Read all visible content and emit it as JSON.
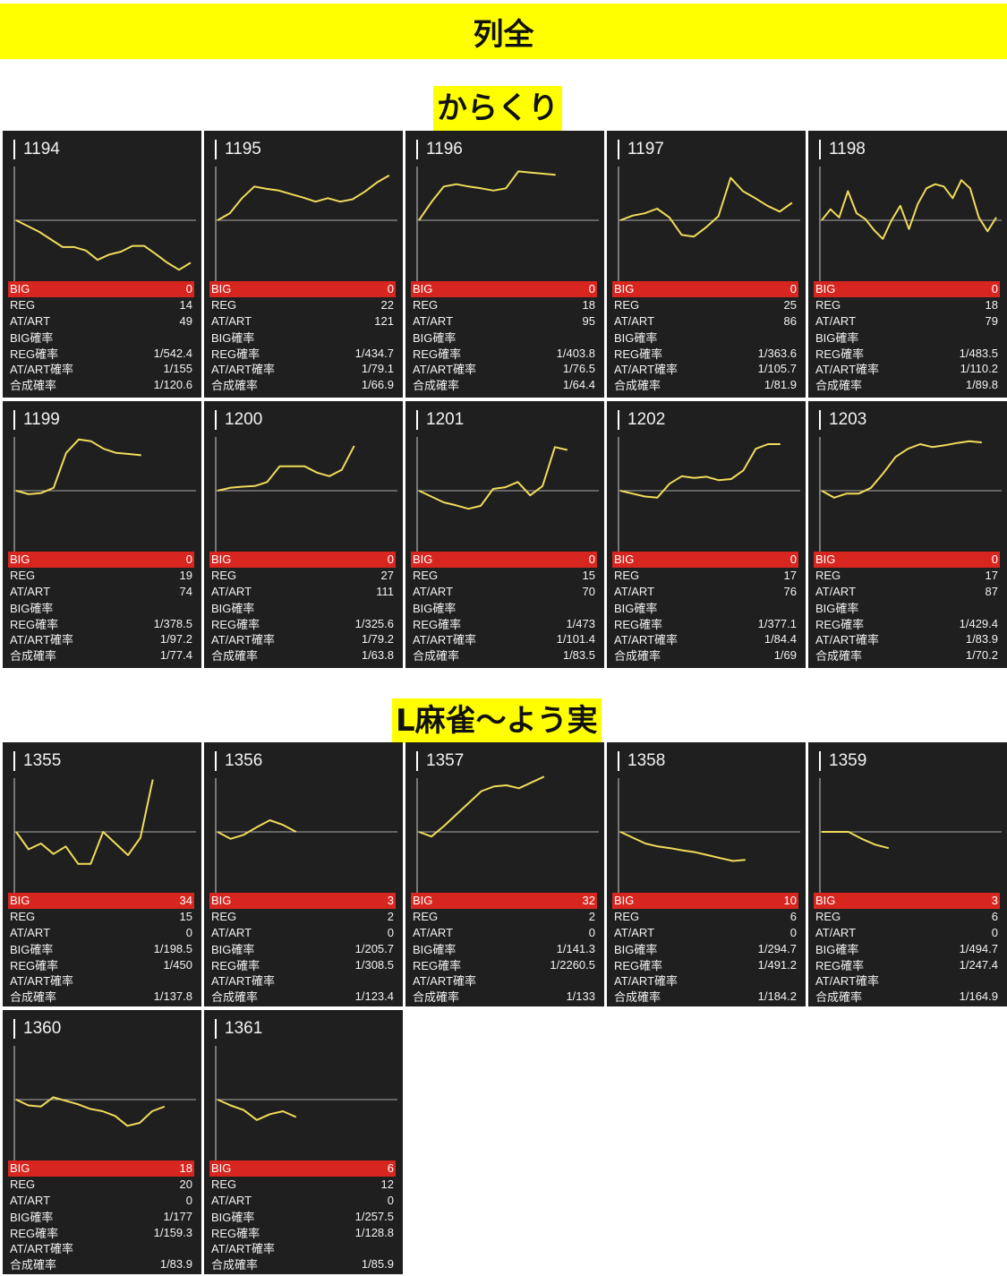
{
  "page_title": "列全",
  "colors": {
    "banner": "#ffff00",
    "card_bg": "#1f1f1f",
    "line": "#f0dc5a",
    "big_row": "#d6261f",
    "baseline": "#aaaaaa"
  },
  "stat_labels": [
    "BIG",
    "REG",
    "AT/ART",
    "BIG確率",
    "REG確率",
    "AT/ART確率",
    "合成確率"
  ],
  "sections": [
    {
      "title": "からくり",
      "machines": [
        {
          "number": "1194",
          "stats": [
            "0",
            "14",
            "49",
            "",
            "1/542.4",
            "1/155",
            "1/120.6"
          ]
        },
        {
          "number": "1195",
          "stats": [
            "0",
            "22",
            "121",
            "",
            "1/434.7",
            "1/79.1",
            "1/66.9"
          ]
        },
        {
          "number": "1196",
          "stats": [
            "0",
            "18",
            "95",
            "",
            "1/403.8",
            "1/76.5",
            "1/64.4"
          ]
        },
        {
          "number": "1197",
          "stats": [
            "0",
            "25",
            "86",
            "",
            "1/363.6",
            "1/105.7",
            "1/81.9"
          ]
        },
        {
          "number": "1198",
          "stats": [
            "0",
            "18",
            "79",
            "",
            "1/483.5",
            "1/110.2",
            "1/89.8"
          ]
        },
        {
          "number": "1199",
          "stats": [
            "0",
            "19",
            "74",
            "",
            "1/378.5",
            "1/97.2",
            "1/77.4"
          ]
        },
        {
          "number": "1200",
          "stats": [
            "0",
            "27",
            "111",
            "",
            "1/325.6",
            "1/79.2",
            "1/63.8"
          ]
        },
        {
          "number": "1201",
          "stats": [
            "0",
            "15",
            "70",
            "",
            "1/473",
            "1/101.4",
            "1/83.5"
          ]
        },
        {
          "number": "1202",
          "stats": [
            "0",
            "17",
            "76",
            "",
            "1/377.1",
            "1/84.4",
            "1/69"
          ]
        },
        {
          "number": "1203",
          "stats": [
            "0",
            "17",
            "87",
            "",
            "1/429.4",
            "1/83.9",
            "1/70.2"
          ]
        }
      ]
    },
    {
      "title": "L麻雀～よう実",
      "machines": [
        {
          "number": "1355",
          "stats": [
            "34",
            "15",
            "0",
            "1/198.5",
            "1/450",
            "",
            "1/137.8"
          ]
        },
        {
          "number": "1356",
          "stats": [
            "3",
            "2",
            "0",
            "1/205.7",
            "1/308.5",
            "",
            "1/123.4"
          ]
        },
        {
          "number": "1357",
          "stats": [
            "32",
            "2",
            "0",
            "1/141.3",
            "1/2260.5",
            "",
            "1/133"
          ]
        },
        {
          "number": "1358",
          "stats": [
            "10",
            "6",
            "0",
            "1/294.7",
            "1/491.2",
            "",
            "1/184.2"
          ]
        },
        {
          "number": "1359",
          "stats": [
            "3",
            "6",
            "0",
            "1/494.7",
            "1/247.4",
            "",
            "1/164.9"
          ]
        },
        {
          "number": "1360",
          "stats": [
            "18",
            "20",
            "0",
            "1/177",
            "1/159.3",
            "",
            "1/83.9"
          ]
        },
        {
          "number": "1361",
          "stats": [
            "6",
            "12",
            "0",
            "1/257.5",
            "1/128.8",
            "",
            "1/85.9"
          ]
        }
      ]
    }
  ],
  "chart_data": [
    {
      "type": "line",
      "machine": "1194",
      "y_range": [
        -1,
        1
      ],
      "values": [
        0,
        -0.1,
        -0.2,
        -0.33,
        -0.46,
        -0.46,
        -0.52,
        -0.68,
        -0.59,
        -0.54,
        -0.44,
        -0.44,
        -0.58,
        -0.73,
        -0.85,
        -0.73
      ]
    },
    {
      "type": "line",
      "machine": "1195",
      "y_range": [
        -1,
        1
      ],
      "values": [
        0,
        0.12,
        0.38,
        0.58,
        0.54,
        0.51,
        0.45,
        0.39,
        0.32,
        0.38,
        0.32,
        0.36,
        0.49,
        0.65,
        0.77
      ]
    },
    {
      "type": "line",
      "machine": "1196",
      "y_range": [
        -1,
        1
      ],
      "values": [
        0,
        0.31,
        0.58,
        0.62,
        0.58,
        0.55,
        0.51,
        0.55,
        0.84,
        0.82,
        0.8,
        0.78
      ]
    },
    {
      "type": "line",
      "machine": "1197",
      "y_range": [
        -1,
        1
      ],
      "values": [
        0,
        0.08,
        0.12,
        0.2,
        0.05,
        -0.25,
        -0.28,
        -0.12,
        0.07,
        0.73,
        0.5,
        0.38,
        0.25,
        0.15,
        0.3
      ]
    },
    {
      "type": "line",
      "machine": "1198",
      "y_range": [
        -1,
        1
      ],
      "values": [
        0,
        0.19,
        0.05,
        0.5,
        0.12,
        0.02,
        -0.17,
        -0.32,
        0,
        0.25,
        -0.15,
        0.28,
        0.55,
        0.62,
        0.58,
        0.38,
        0.69,
        0.55,
        0.05,
        -0.19,
        0.05
      ]
    },
    {
      "type": "line",
      "machine": "1199",
      "y_range": [
        -1,
        1
      ],
      "values": [
        0,
        -0.06,
        -0.04,
        0.05,
        0.65,
        0.88,
        0.85,
        0.72,
        0.65,
        0.63,
        0.61
      ]
    },
    {
      "type": "line",
      "machine": "1200",
      "y_range": [
        -1,
        1
      ],
      "values": [
        0,
        0.05,
        0.07,
        0.08,
        0.15,
        0.42,
        0.42,
        0.42,
        0.31,
        0.25,
        0.36,
        0.77
      ]
    },
    {
      "type": "line",
      "machine": "1201",
      "y_range": [
        -1,
        1
      ],
      "values": [
        0,
        -0.1,
        -0.2,
        -0.25,
        -0.31,
        -0.26,
        0.03,
        0.06,
        0.15,
        -0.08,
        0.08,
        0.75,
        0.7
      ]
    },
    {
      "type": "line",
      "machine": "1202",
      "y_range": [
        -1,
        1
      ],
      "values": [
        0,
        -0.05,
        -0.1,
        -0.12,
        0.12,
        0.25,
        0.22,
        0.24,
        0.18,
        0.2,
        0.35,
        0.72,
        0.8,
        0.8
      ]
    },
    {
      "type": "line",
      "machine": "1203",
      "y_range": [
        -1,
        1
      ],
      "values": [
        0,
        -0.12,
        -0.05,
        -0.05,
        0.05,
        0.3,
        0.58,
        0.72,
        0.8,
        0.75,
        0.78,
        0.82,
        0.85,
        0.83
      ]
    },
    {
      "type": "line",
      "machine": "1355",
      "y_range": [
        -1,
        1
      ],
      "values": [
        0,
        -0.3,
        -0.2,
        -0.38,
        -0.25,
        -0.55,
        -0.55,
        0,
        -0.2,
        -0.4,
        -0.1,
        0.9
      ]
    },
    {
      "type": "line",
      "machine": "1356",
      "y_range": [
        -1,
        1
      ],
      "values": [
        0,
        -0.12,
        -0.05,
        0.08,
        0.2,
        0.12,
        0
      ]
    },
    {
      "type": "line",
      "machine": "1357",
      "y_range": [
        -1,
        1
      ],
      "values": [
        0,
        -0.08,
        0.1,
        0.3,
        0.5,
        0.7,
        0.78,
        0.8,
        0.75,
        0.85,
        0.95
      ]
    },
    {
      "type": "line",
      "machine": "1358",
      "y_range": [
        -1,
        1
      ],
      "values": [
        0,
        -0.1,
        -0.2,
        -0.25,
        -0.28,
        -0.32,
        -0.35,
        -0.4,
        -0.45,
        -0.5,
        -0.48
      ]
    },
    {
      "type": "line",
      "machine": "1359",
      "y_range": [
        -1,
        1
      ],
      "values": [
        0,
        0,
        0,
        -0.12,
        -0.22,
        -0.28
      ]
    },
    {
      "type": "line",
      "machine": "1360",
      "y_range": [
        -1,
        1
      ],
      "values": [
        0,
        -0.1,
        -0.12,
        0.04,
        -0.02,
        -0.08,
        -0.16,
        -0.2,
        -0.28,
        -0.45,
        -0.4,
        -0.2,
        -0.12
      ]
    },
    {
      "type": "line",
      "machine": "1361",
      "y_range": [
        -1,
        1
      ],
      "values": [
        0,
        -0.1,
        -0.18,
        -0.35,
        -0.25,
        -0.2,
        -0.3
      ]
    }
  ]
}
